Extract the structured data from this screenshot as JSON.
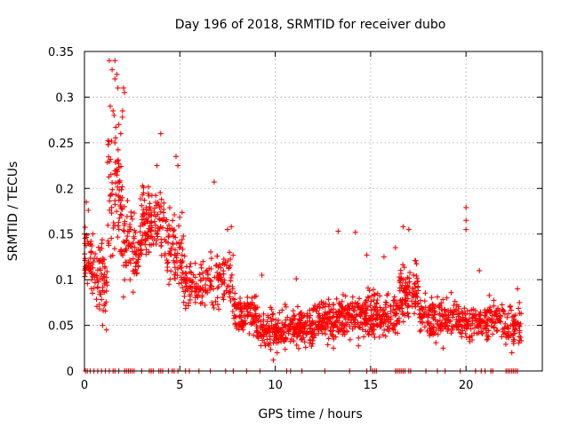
{
  "chart_data": {
    "type": "scatter",
    "title": "Day 196 of 2018, SRMTID for receiver dubo",
    "xlabel": "GPS time / hours",
    "ylabel": "SRMTID / TECUs",
    "xlim": [
      0,
      24
    ],
    "ylim": [
      0,
      0.35
    ],
    "xticks": [
      0,
      5,
      10,
      15,
      20
    ],
    "xtick_labels": [
      "0",
      "5",
      "10",
      "15",
      "20"
    ],
    "yticks": [
      0,
      0.05,
      0.1,
      0.15,
      0.2,
      0.25,
      0.3,
      0.35
    ],
    "ytick_labels": [
      "0",
      "0.05",
      "0.1",
      "0.15",
      "0.2",
      "0.25",
      "0.3",
      "0.35"
    ],
    "grid": true,
    "marker": "+",
    "color": "#ff0000",
    "series": [
      {
        "name": "SRMTID",
        "profile": [
          {
            "x": [
              0.0,
              0.5
            ],
            "center": 0.12,
            "spread": 0.03,
            "count": 50
          },
          {
            "x": [
              0.5,
              1.2
            ],
            "center": 0.1,
            "spread": 0.035,
            "count": 60
          },
          {
            "x": [
              1.2,
              2.0
            ],
            "center": 0.19,
            "spread": 0.07,
            "count": 80
          },
          {
            "x": [
              2.0,
              3.0
            ],
            "center": 0.14,
            "spread": 0.04,
            "count": 90
          },
          {
            "x": [
              3.0,
              4.2
            ],
            "center": 0.16,
            "spread": 0.035,
            "count": 110
          },
          {
            "x": [
              4.2,
              5.2
            ],
            "center": 0.13,
            "spread": 0.04,
            "count": 80
          },
          {
            "x": [
              5.2,
              6.5
            ],
            "center": 0.095,
            "spread": 0.025,
            "count": 90
          },
          {
            "x": [
              6.5,
              7.8
            ],
            "center": 0.1,
            "spread": 0.03,
            "count": 80
          },
          {
            "x": [
              7.8,
              9.0
            ],
            "center": 0.065,
            "spread": 0.02,
            "count": 100
          },
          {
            "x": [
              9.0,
              10.5
            ],
            "center": 0.045,
            "spread": 0.018,
            "count": 130
          },
          {
            "x": [
              10.5,
              12.0
            ],
            "center": 0.048,
            "spread": 0.018,
            "count": 140
          },
          {
            "x": [
              12.0,
              13.5
            ],
            "center": 0.055,
            "spread": 0.02,
            "count": 140
          },
          {
            "x": [
              13.5,
              15.0
            ],
            "center": 0.06,
            "spread": 0.022,
            "count": 140
          },
          {
            "x": [
              15.0,
              16.5
            ],
            "center": 0.06,
            "spread": 0.022,
            "count": 130
          },
          {
            "x": [
              16.5,
              17.5
            ],
            "center": 0.085,
            "spread": 0.028,
            "count": 100
          },
          {
            "x": [
              17.5,
              19.0
            ],
            "center": 0.06,
            "spread": 0.022,
            "count": 120
          },
          {
            "x": [
              19.0,
              20.5
            ],
            "center": 0.055,
            "spread": 0.02,
            "count": 110
          },
          {
            "x": [
              20.5,
              22.0
            ],
            "center": 0.055,
            "spread": 0.018,
            "count": 110
          },
          {
            "x": [
              22.0,
              22.9
            ],
            "center": 0.05,
            "spread": 0.018,
            "count": 60
          }
        ],
        "outliers": [
          [
            1.3,
            0.34
          ],
          [
            1.6,
            0.34
          ],
          [
            1.45,
            0.33
          ],
          [
            1.7,
            0.325
          ],
          [
            1.6,
            0.32
          ],
          [
            1.75,
            0.31
          ],
          [
            2.05,
            0.31
          ],
          [
            2.1,
            0.305
          ],
          [
            1.35,
            0.29
          ],
          [
            1.5,
            0.285
          ],
          [
            1.55,
            0.28
          ],
          [
            2.0,
            0.285
          ],
          [
            1.8,
            0.27
          ],
          [
            1.9,
            0.26
          ],
          [
            1.6,
            0.25
          ],
          [
            4.0,
            0.26
          ],
          [
            4.8,
            0.235
          ],
          [
            4.9,
            0.225
          ],
          [
            3.8,
            0.225
          ],
          [
            6.8,
            0.207
          ],
          [
            20.0,
            0.179
          ],
          [
            20.0,
            0.165
          ],
          [
            16.7,
            0.158
          ],
          [
            17.0,
            0.155
          ],
          [
            13.3,
            0.153
          ],
          [
            14.2,
            0.152
          ],
          [
            16.3,
            0.135
          ],
          [
            20.0,
            0.155
          ],
          [
            11.1,
            0.101
          ],
          [
            9.3,
            0.105
          ],
          [
            14.8,
            0.127
          ],
          [
            15.7,
            0.125
          ],
          [
            20.7,
            0.11
          ],
          [
            22.7,
            0.09
          ],
          [
            22.8,
            0.075
          ],
          [
            9.9,
            0.012
          ],
          [
            10.1,
            0.02
          ],
          [
            18.8,
            0.025
          ],
          [
            22.4,
            0.02
          ],
          [
            22.5,
            0.03
          ],
          [
            0.1,
            0.185
          ],
          [
            0.2,
            0.176
          ],
          [
            0.0,
            0.15
          ],
          [
            1.15,
            0.045
          ],
          [
            0.95,
            0.05
          ],
          [
            7.5,
            0.155
          ],
          [
            7.6,
            0.13
          ],
          [
            7.7,
            0.158
          ]
        ],
        "zero_markers": [
          0.05,
          0.15,
          0.3,
          0.5,
          0.7,
          0.9,
          1.1,
          1.3,
          1.5,
          1.6,
          1.8,
          2.1,
          2.2,
          2.3,
          2.4,
          2.5,
          2.6,
          3.0,
          3.4,
          3.5,
          3.6,
          3.9,
          4.0,
          4.1,
          4.4,
          4.6,
          4.7,
          4.9,
          5.3,
          5.5,
          6.0,
          6.6,
          7.4,
          7.8,
          8.5,
          9.2,
          10.6,
          10.8,
          11.4,
          12.6,
          13.9,
          14.8,
          15.1,
          15.2,
          15.3,
          16.3,
          16.4,
          16.5,
          16.6,
          16.7,
          16.8,
          17.0,
          17.1,
          17.9,
          18.5,
          18.9,
          19.7,
          20.5,
          20.8,
          21.0,
          21.3,
          21.4,
          22.1,
          22.2,
          22.3,
          22.4,
          22.5,
          22.6,
          22.7
        ]
      }
    ]
  }
}
